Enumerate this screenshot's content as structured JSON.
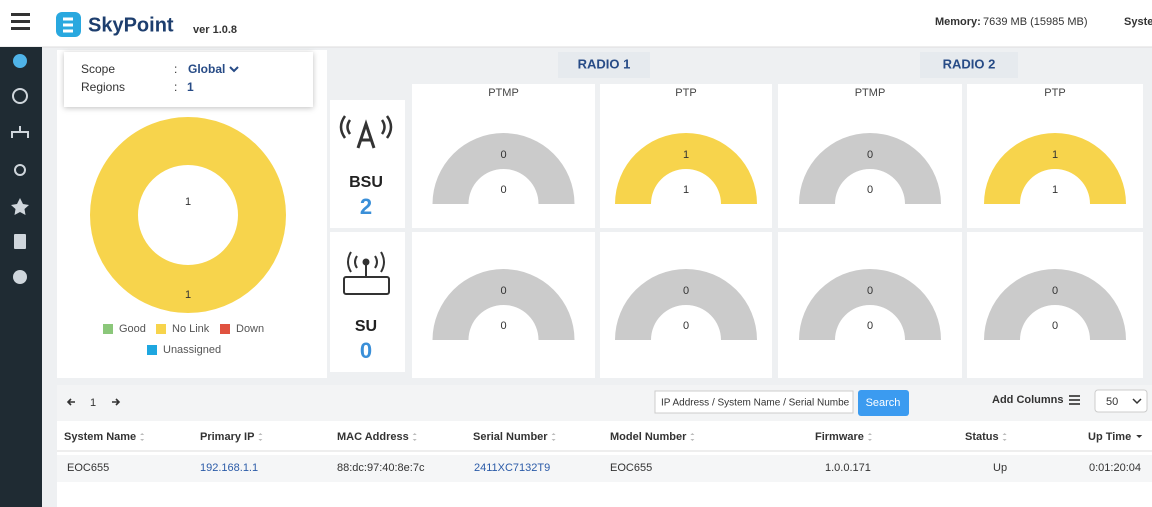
{
  "header": {
    "brand": "SkyPoint",
    "version": "ver 1.0.8",
    "memory_label": "Memory:",
    "memory_value": "7639 MB (15985 MB)",
    "system": "Syste"
  },
  "scope": {
    "scope_label": "Scope",
    "scope_value": "Global",
    "regions_label": "Regions",
    "regions_value": 1
  },
  "donut": {
    "inner_label": 1,
    "outer_label": 1,
    "legend": [
      {
        "name": "Good",
        "color": "#8bc77a"
      },
      {
        "name": "No Link",
        "color": "#f7d44c"
      },
      {
        "name": "Down",
        "color": "#e0523f"
      },
      {
        "name": "Unassigned",
        "color": "#1ea7e0"
      }
    ]
  },
  "devices": [
    {
      "label": "BSU",
      "count": 2
    },
    {
      "label": "SU",
      "count": 0
    }
  ],
  "radios": [
    {
      "title": "RADIO 1",
      "modes": [
        {
          "title": "PTMP",
          "gauges": [
            {
              "top": 0,
              "center": 0
            },
            {
              "top": 0,
              "center": 0
            }
          ]
        },
        {
          "title": "PTP",
          "gauges": [
            {
              "top": 1,
              "center": 1
            },
            {
              "top": 0,
              "center": 0
            }
          ]
        }
      ]
    },
    {
      "title": "RADIO 2",
      "modes": [
        {
          "title": "PTMP",
          "gauges": [
            {
              "top": 0,
              "center": 0
            },
            {
              "top": 0,
              "center": 0
            }
          ]
        },
        {
          "title": "PTP",
          "gauges": [
            {
              "top": 1,
              "center": 1
            },
            {
              "top": 0,
              "center": 0
            }
          ]
        }
      ]
    }
  ],
  "toolbar": {
    "page": 1,
    "search_placeholder": "IP Address / System Name / Serial Numbe",
    "search_button": "Search",
    "add_columns": "Add Columns",
    "page_size": 50
  },
  "table": {
    "columns": [
      "System Name",
      "Primary IP",
      "MAC Address",
      "Serial Number",
      "Model Number",
      "Firmware",
      "Status",
      "Up Time"
    ],
    "rows": [
      [
        "EOC655",
        "192.168.1.1",
        "88:dc:97:40:8e:7c",
        "2411XC7132T9",
        "EOC655",
        "1.0.0.171",
        "Up",
        "0:01:20:04"
      ]
    ]
  }
}
